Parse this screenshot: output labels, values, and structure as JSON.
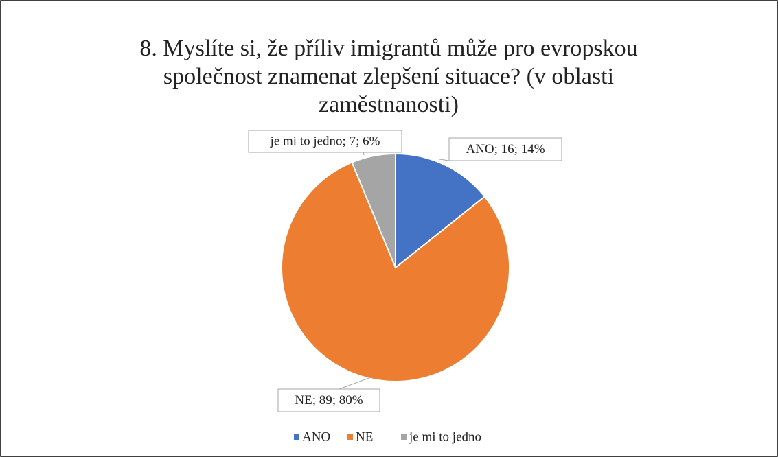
{
  "chart_data": {
    "type": "pie",
    "title": "8. Myslíte si, že příliv imigrantů může pro evropskou společnost znamenat zlepšení situace? (v oblasti zaměstnanosti)",
    "categories": [
      "ANO",
      "NE",
      "je mi to jedno"
    ],
    "values": [
      16,
      89,
      7
    ],
    "value_labels": [
      "ANO; 16; 14%",
      "NE; 89; 80%",
      "je mi to jedno; 7; 6%"
    ],
    "colors": [
      "#4472c4",
      "#ed7d31",
      "#a5a5a5"
    ],
    "legend": "bottom"
  }
}
